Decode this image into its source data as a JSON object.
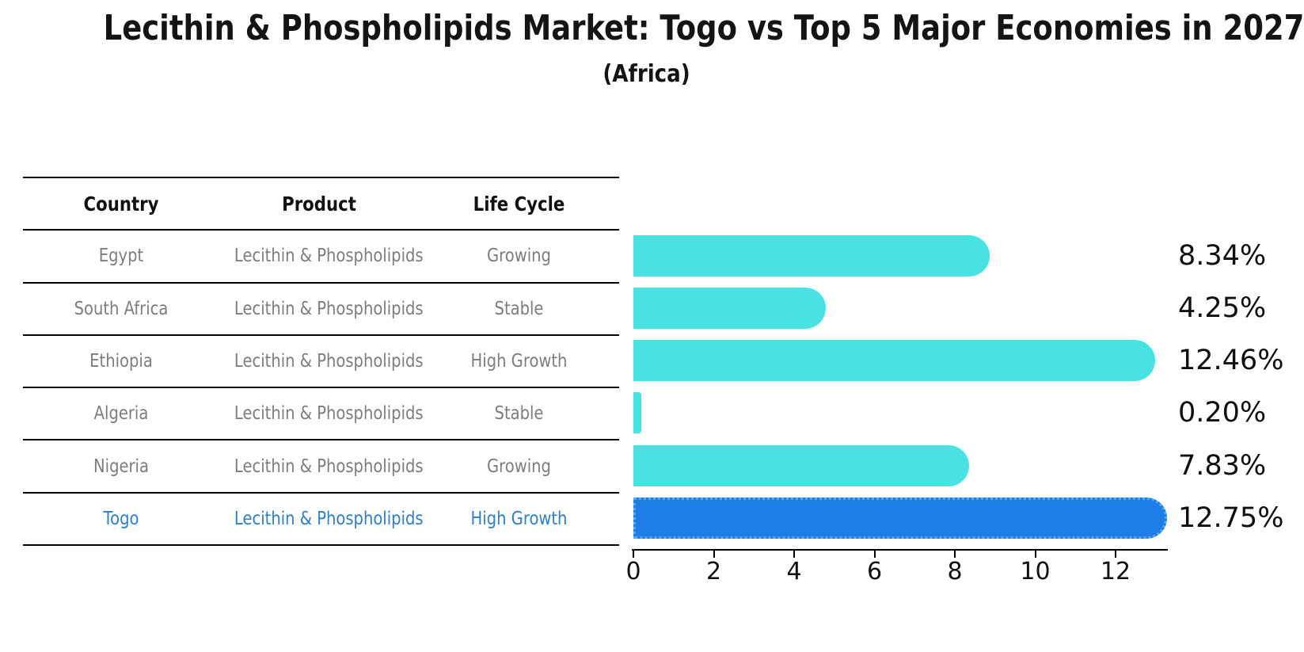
{
  "title": "Lecithin & Phospholipids Market: Togo vs Top 5 Major Economies in 2027",
  "subtitle": "(Africa)",
  "table": {
    "headers": [
      "Country",
      "Product",
      "Life Cycle"
    ],
    "rows": [
      {
        "country": "Egypt",
        "product": "Lecithin & Phospholipids",
        "life_cycle": "Growing",
        "highlight": false
      },
      {
        "country": "South Africa",
        "product": "Lecithin & Phospholipids",
        "life_cycle": "Stable",
        "highlight": false
      },
      {
        "country": "Ethiopia",
        "product": "Lecithin & Phospholipids",
        "life_cycle": "High Growth",
        "highlight": false
      },
      {
        "country": "Algeria",
        "product": "Lecithin & Phospholipids",
        "life_cycle": "Stable",
        "highlight": false
      },
      {
        "country": "Nigeria",
        "product": "Lecithin & Phospholipids",
        "life_cycle": "Growing",
        "highlight": false
      },
      {
        "country": "Togo",
        "product": "Lecithin & Phospholipids",
        "life_cycle": "High Growth",
        "highlight": true
      }
    ]
  },
  "chart_data": {
    "type": "bar",
    "orientation": "horizontal",
    "title": "Lecithin & Phospholipids Market: Togo vs Top 5 Major Economies in 2027 (Africa)",
    "categories": [
      "Egypt",
      "South Africa",
      "Ethiopia",
      "Algeria",
      "Nigeria",
      "Togo"
    ],
    "values": [
      8.34,
      4.25,
      12.46,
      0.2,
      7.83,
      12.75
    ],
    "value_labels": [
      "8.34%",
      "4.25%",
      "12.46%",
      "0.20%",
      "7.83%",
      "12.75%"
    ],
    "xlabel": "",
    "ylabel": "",
    "xticks": [
      0,
      2,
      4,
      6,
      8,
      10,
      12
    ],
    "xlim": [
      0,
      13.3
    ],
    "grid": false,
    "legend": "none",
    "bar_color": "#48e2e2",
    "highlight_color": "#1e7de6",
    "highlight_border_color": "#56a9f1",
    "highlight_category": "Togo"
  },
  "colors": {
    "background": "#ffffff",
    "text": "#111111",
    "muted_text": "#7d7d7d",
    "highlight_text": "#2f7fc1",
    "axis": "#000000"
  }
}
